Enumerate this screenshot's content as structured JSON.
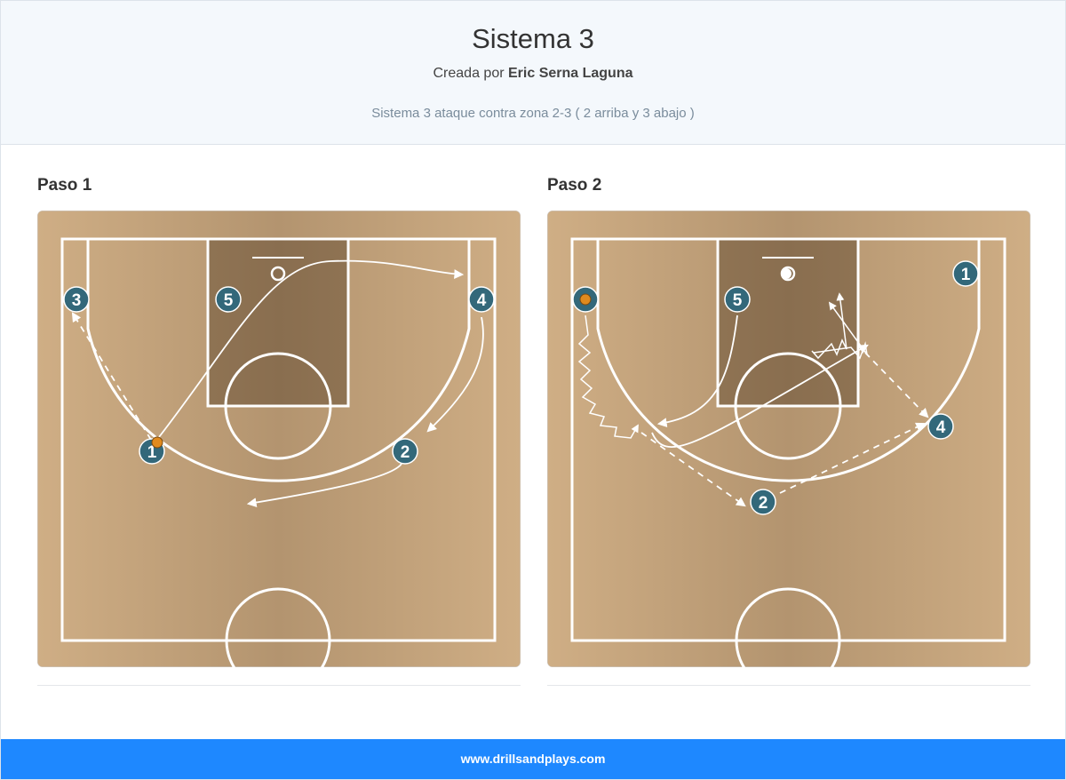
{
  "header": {
    "title": "Sistema 3",
    "author_prefix": "Creada por",
    "author": "Eric Serna Laguna",
    "description": "Sistema 3 ataque contra zona 2-3 ( 2 arriba y 3 abajo )"
  },
  "steps": [
    {
      "title": "Paso 1",
      "players": [
        "3",
        "5",
        "4",
        "1",
        "2"
      ]
    },
    {
      "title": "Paso 2",
      "players": [
        "5",
        "1",
        "4",
        "2"
      ]
    }
  ],
  "footer": {
    "link": "www.drillsandplays.com"
  }
}
